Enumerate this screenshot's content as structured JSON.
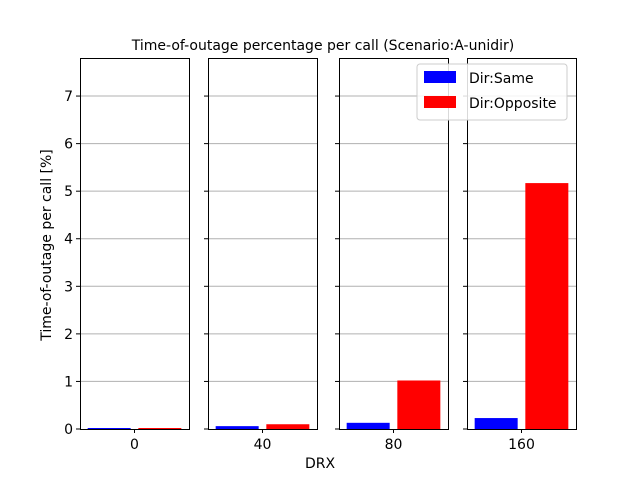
{
  "chart_data": {
    "type": "bar",
    "title": "Time-of-outage percentage per call (Scenario:A-unidir)",
    "xlabel": "DRX",
    "ylabel": "Time-of-outage per call [%]",
    "categories": [
      "0",
      "40",
      "80",
      "160"
    ],
    "series": [
      {
        "name": "Dir:Same",
        "color": "#0000ff",
        "values": [
          0.02,
          0.06,
          0.13,
          0.23
        ]
      },
      {
        "name": "Dir:Opposite",
        "color": "#ff0000",
        "values": [
          0.02,
          0.1,
          1.02,
          5.17
        ]
      }
    ],
    "ylim": [
      0,
      7.8
    ],
    "yticks": [
      0,
      1,
      2,
      3,
      4,
      5,
      6,
      7
    ],
    "grid": true,
    "legend_position": "top-right"
  }
}
